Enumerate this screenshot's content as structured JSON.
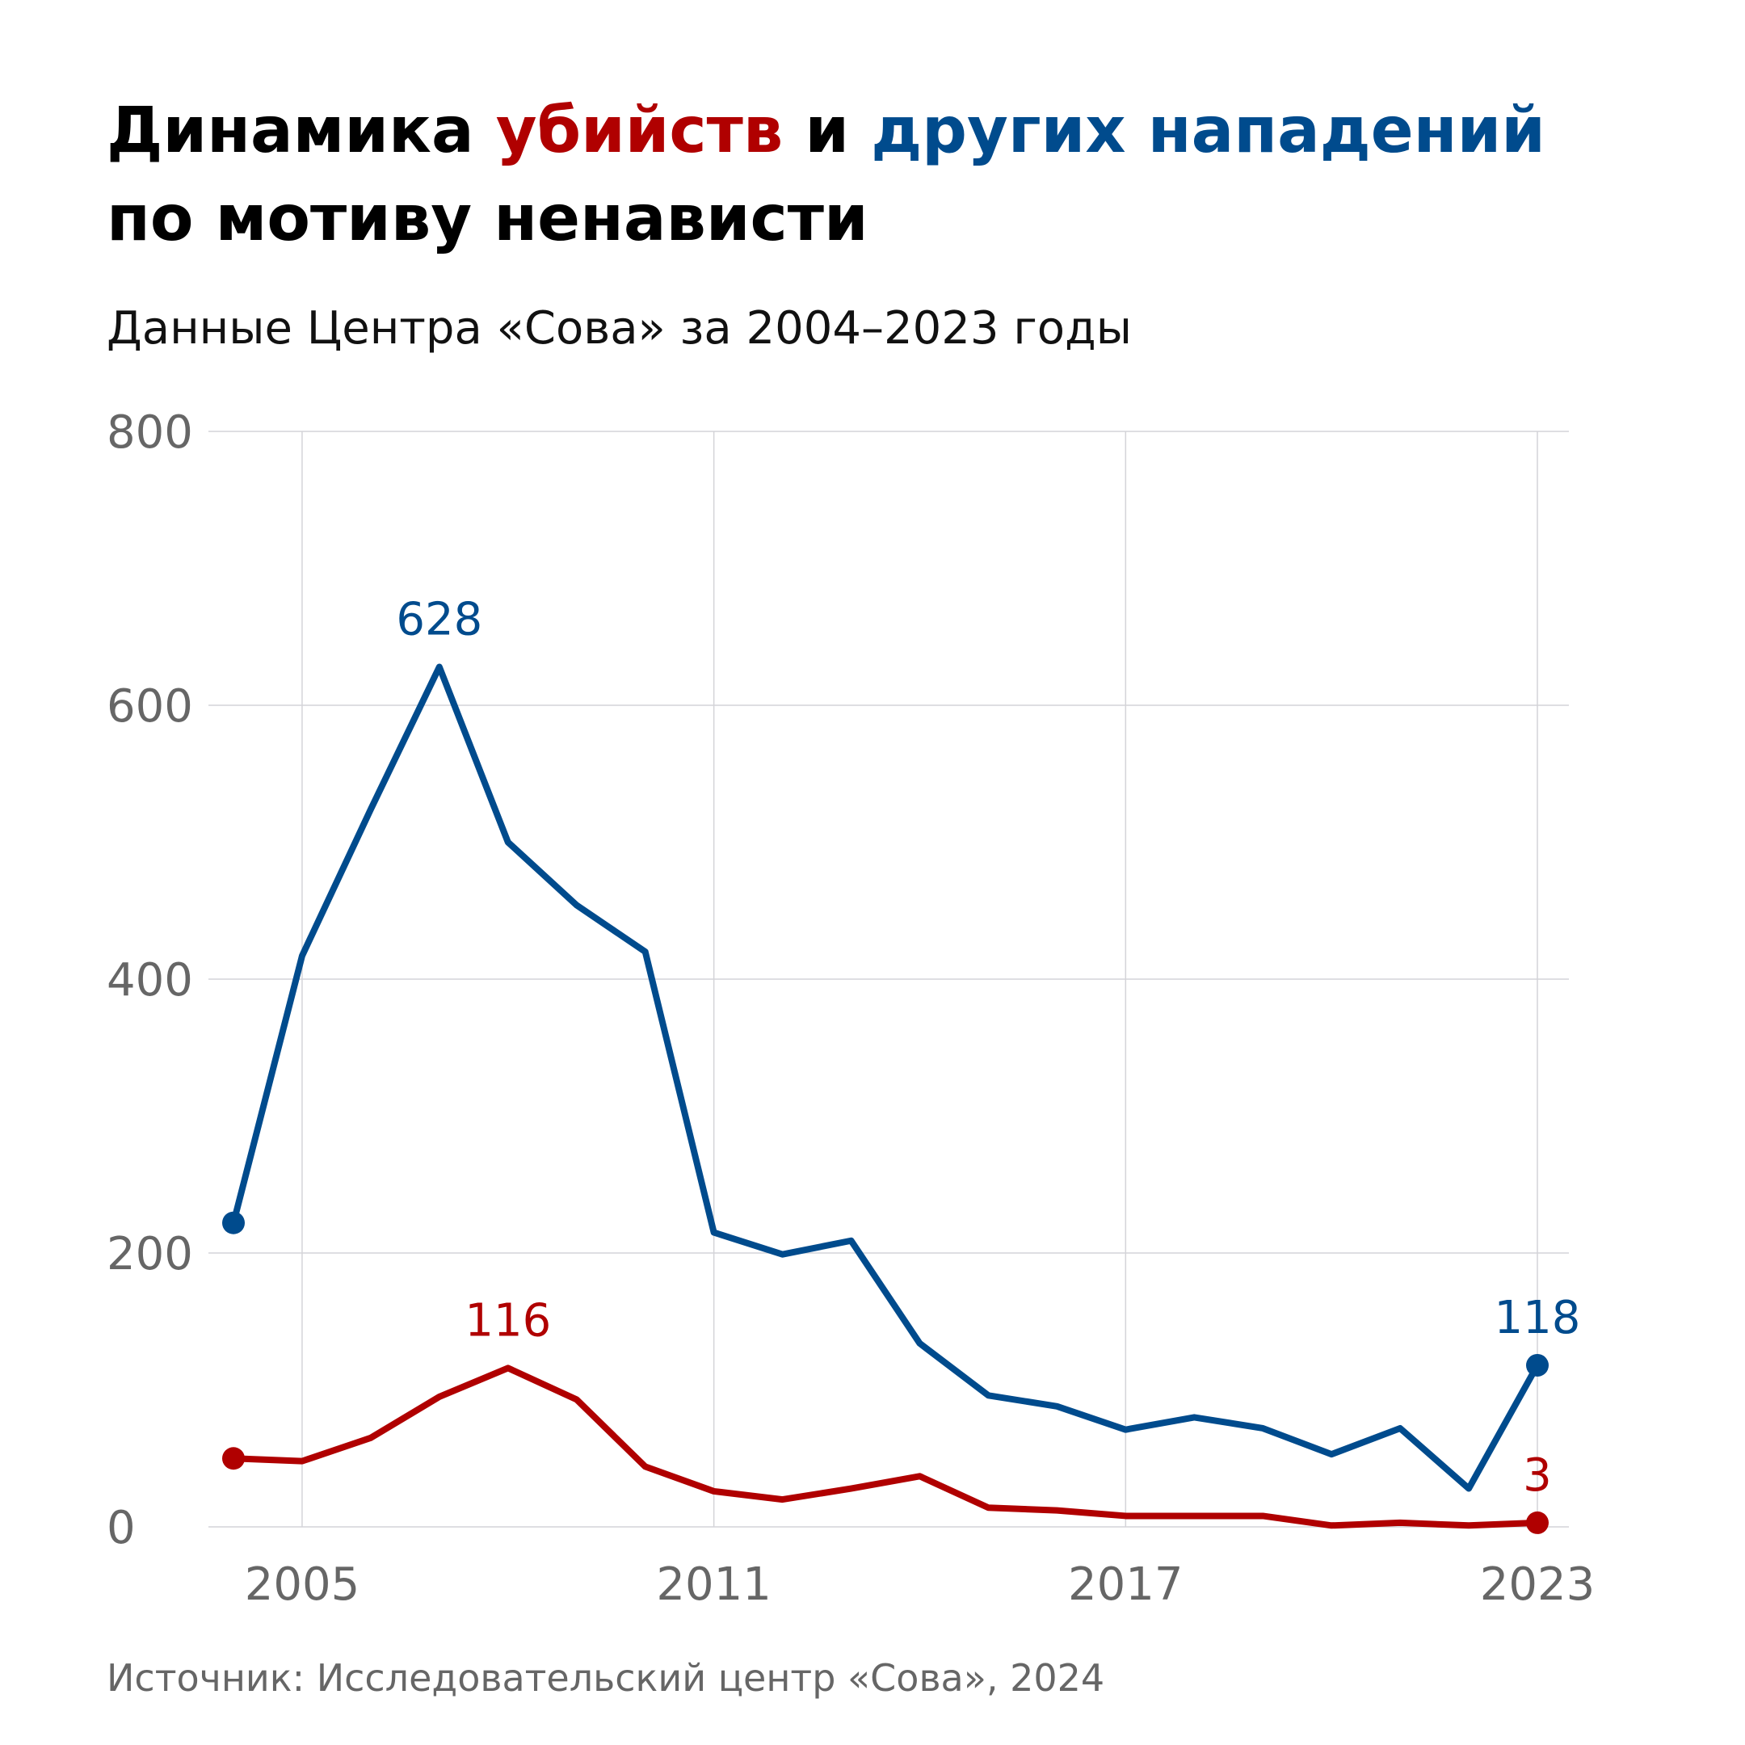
{
  "title": {
    "part1": "Динамика ",
    "part2": "убийств",
    "part3": " и ",
    "part4": "других нападений",
    "line2": "по мотиву ненависти"
  },
  "subtitle": "Данные Центра «Сова» за 2004–2023 годы",
  "source": "Источник: Исследовательский центр «Сова», 2024",
  "colors": {
    "murders": "#b00000",
    "attacks": "#004b8d"
  },
  "chart_data": {
    "type": "line",
    "x": [
      2004,
      2005,
      2006,
      2007,
      2008,
      2009,
      2010,
      2011,
      2012,
      2013,
      2014,
      2015,
      2016,
      2017,
      2018,
      2019,
      2020,
      2021,
      2022,
      2023
    ],
    "series": [
      {
        "key": "attacks",
        "values": [
          222,
          417,
          524,
          628,
          500,
          454,
          420,
          215,
          199,
          209,
          134,
          96,
          88,
          71,
          80,
          72,
          53,
          72,
          28,
          118
        ]
      },
      {
        "key": "murders",
        "values": [
          50,
          48,
          65,
          95,
          116,
          93,
          44,
          26,
          20,
          28,
          37,
          14,
          12,
          8,
          8,
          8,
          1,
          3,
          1,
          3
        ]
      }
    ],
    "annotations": [
      {
        "series": "attacks",
        "x": 2007,
        "text": "628"
      },
      {
        "series": "attacks",
        "x": 2023,
        "text": "118"
      },
      {
        "series": "murders",
        "x": 2008,
        "text": "116"
      },
      {
        "series": "murders",
        "x": 2023,
        "text": "3"
      }
    ],
    "ylim": [
      0,
      800
    ],
    "yticks": [
      "0",
      "200",
      "400",
      "600",
      "800"
    ],
    "xticks": [
      "2005",
      "2011",
      "2017",
      "2023"
    ],
    "grid": true,
    "legend": "in title"
  }
}
